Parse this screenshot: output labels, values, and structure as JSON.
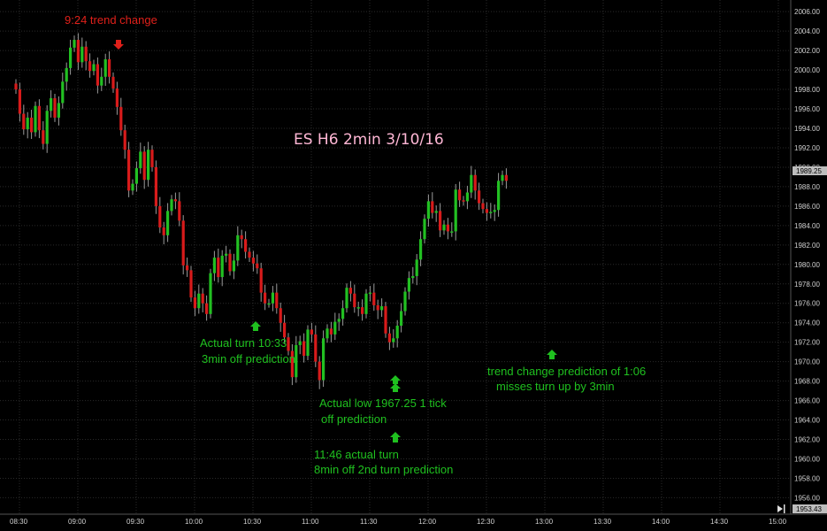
{
  "chart_data": {
    "type": "candlestick",
    "title": "ES H6 2min 3/10/16",
    "ylim": [
      1954.4,
      2007.2
    ],
    "y_ticks": [
      "2006.00",
      "2004.00",
      "2002.00",
      "2000.00",
      "1998.00",
      "1996.00",
      "1994.00",
      "1992.00",
      "1990.00",
      "1988.00",
      "1986.00",
      "1984.00",
      "1982.00",
      "1980.00",
      "1978.00",
      "1976.00",
      "1974.00",
      "1972.00",
      "1970.00",
      "1968.00",
      "1966.00",
      "1964.00",
      "1962.00",
      "1960.00",
      "1958.00",
      "1956.00"
    ],
    "x_ticks": [
      "08:30",
      "09:00",
      "09:30",
      "10:00",
      "10:30",
      "11:00",
      "11:30",
      "12:00",
      "12:30",
      "13:00",
      "13:30",
      "14:00",
      "14:30",
      "15:00"
    ],
    "bar_interval_min": 2,
    "start_time": "08:30",
    "colors": {
      "up": "#22c022",
      "down": "#d81b1b",
      "wick": "#9a9a9a",
      "grid": "#2a2a2a",
      "axis_text": "#cfcfcf",
      "title": "#ffb7d5",
      "green_anno": "#1fc01f",
      "red_anno": "#e0201a",
      "bg": "#000000"
    },
    "closes": [
      1998.0,
      1995.5,
      1993.9,
      1995.1,
      1993.6,
      1996.3,
      1993.8,
      1992.4,
      1995.8,
      1997.1,
      1995.1,
      1996.6,
      1998.8,
      2000.2,
      2002.3,
      2003.1,
      2000.8,
      2002.4,
      2000.9,
      1999.9,
      2000.6,
      1998.4,
      1999.3,
      2001.1,
      1999.3,
      1998.1,
      1996.2,
      1993.8,
      1991.8,
      1987.6,
      1988.3,
      1989.9,
      1991.6,
      1988.7,
      1991.8,
      1990.0,
      1986.0,
      1983.8,
      1983.0,
      1985.5,
      1986.7,
      1986.5,
      1984.5,
      1979.9,
      1979.4,
      1976.6,
      1975.5,
      1977.0,
      1976.0,
      1974.9,
      1979.1,
      1980.7,
      1978.7,
      1980.9,
      1981.1,
      1979.3,
      1980.4,
      1983.0,
      1982.6,
      1981.3,
      1980.7,
      1980.1,
      1979.6,
      1977.1,
      1976.0,
      1976.0,
      1977.1,
      1975.5,
      1974.0,
      1972.5,
      1971.1,
      1968.4,
      1971.7,
      1972.1,
      1970.6,
      1973.3,
      1972.8,
      1970.0,
      1968.1,
      1972.4,
      1973.4,
      1972.8,
      1974.1,
      1974.4,
      1975.5,
      1977.6,
      1977.0,
      1975.6,
      1975.6,
      1974.9,
      1977.0,
      1977.1,
      1975.8,
      1975.3,
      1975.7,
      1972.9,
      1972.0,
      1972.4,
      1973.7,
      1975.2,
      1977.2,
      1978.6,
      1978.8,
      1980.5,
      1982.6,
      1984.7,
      1986.5,
      1985.3,
      1985.5,
      1983.5,
      1984.1,
      1983.4,
      1983.4,
      1987.7,
      1986.6,
      1986.5,
      1987.4,
      1989.2,
      1987.6,
      1986.3,
      1985.7,
      1985.3,
      1985.4,
      1985.6,
      1988.6,
      1989.2,
      1988.6
    ],
    "annotations": [
      {
        "text": "9:24 trend change",
        "color": "red"
      },
      {
        "text": "Actual turn 10:33",
        "color": "green"
      },
      {
        "text": "3min off prediction",
        "color": "green"
      },
      {
        "text": "Actual low 1967.25 1 tick",
        "color": "green"
      },
      {
        "text": "off prediction",
        "color": "green"
      },
      {
        "text": "11:46 actual turn",
        "color": "green"
      },
      {
        "text": "8min off 2nd turn prediction",
        "color": "green"
      },
      {
        "text": "trend change prediction of 1:06",
        "color": "green"
      },
      {
        "text": "misses turn up by 3min",
        "color": "green"
      }
    ],
    "last_price_tag": "1989.25",
    "bottom_price_tag": "1953.43",
    "nav_icon": "skip-to-end-icon",
    "grid": true
  }
}
